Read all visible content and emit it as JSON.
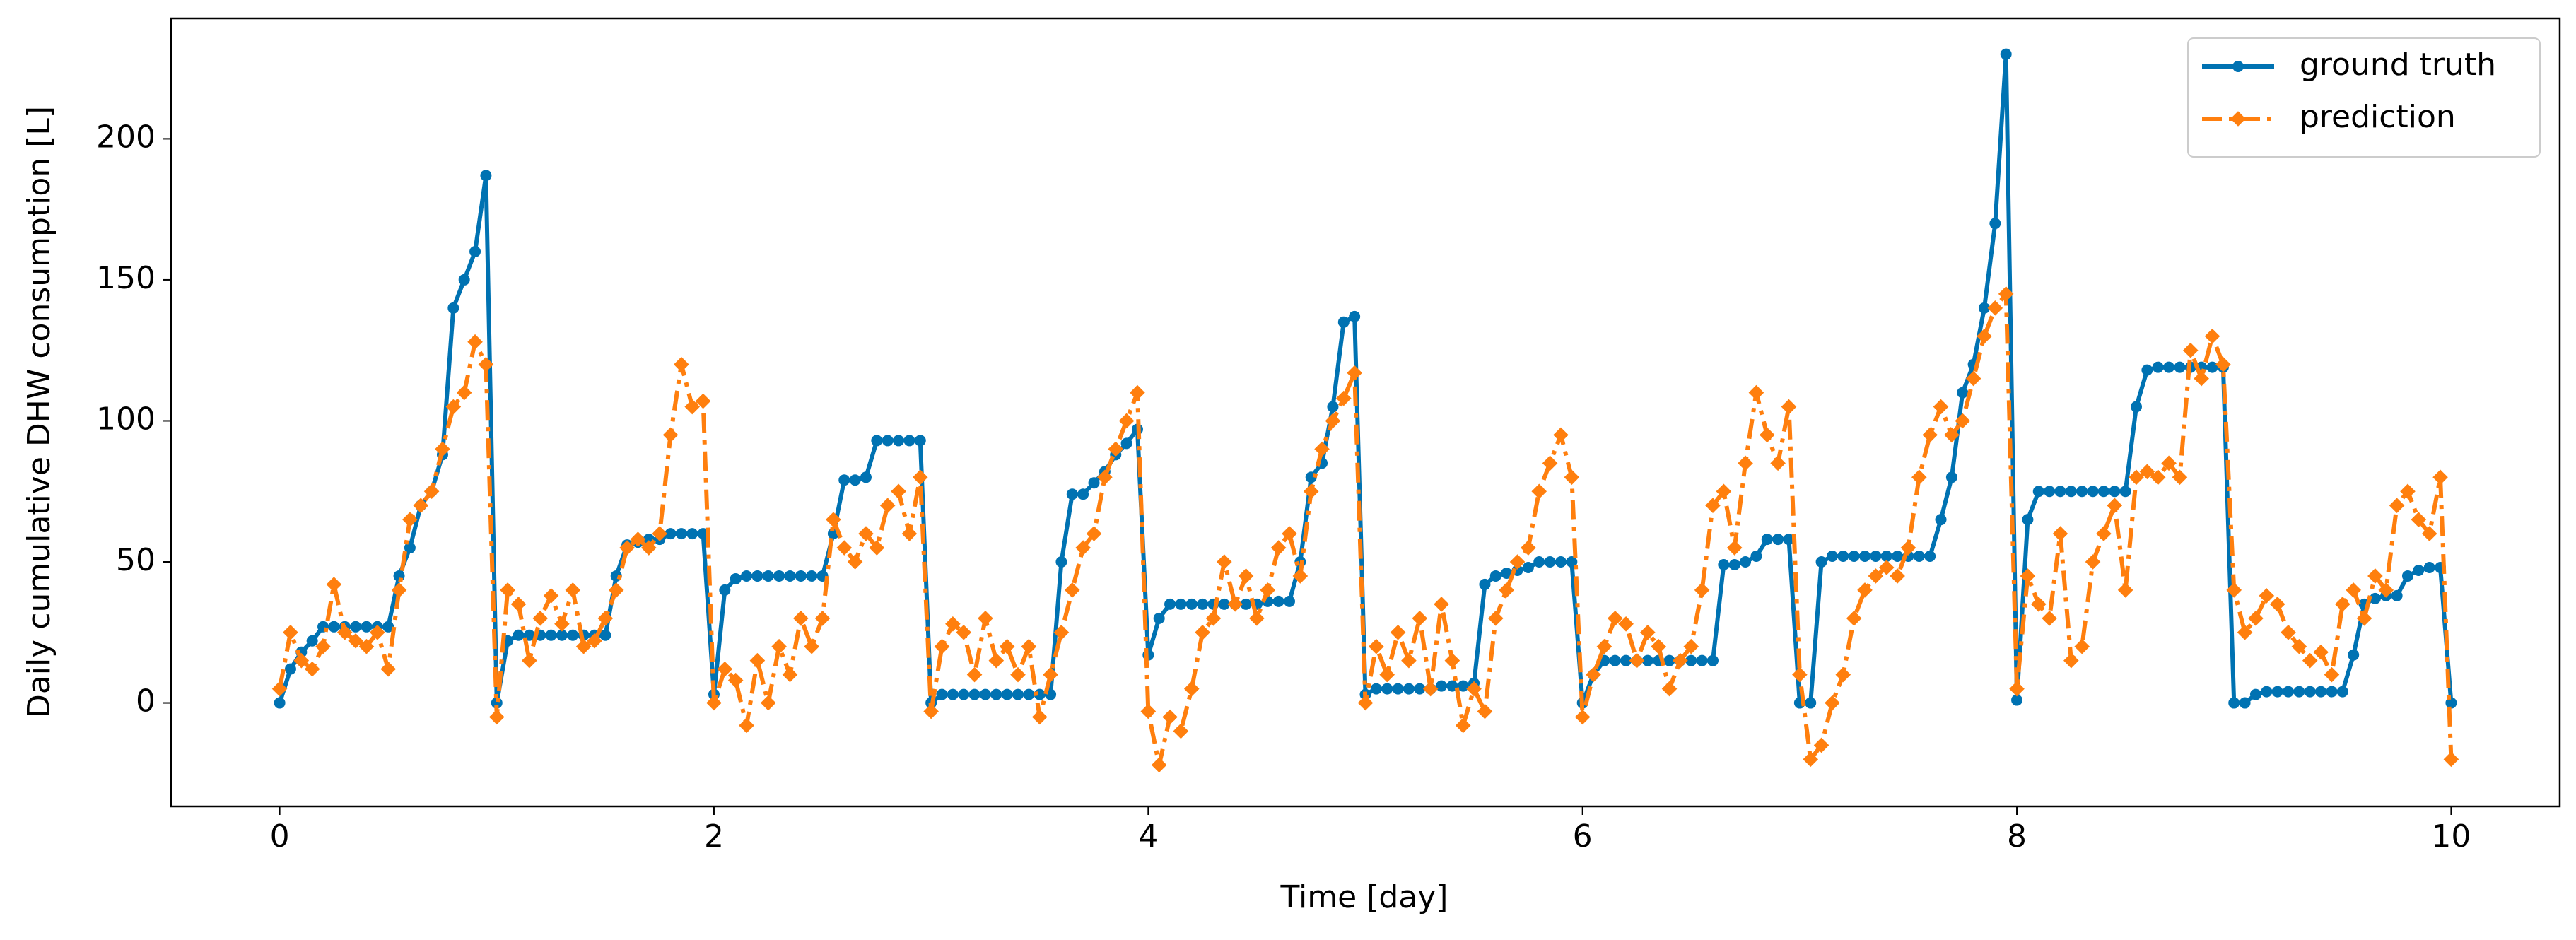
{
  "chart_data": {
    "type": "line",
    "xlabel": "Time [day]",
    "ylabel": "Daily cumulative DHW consumption [L]",
    "xlim": [
      -0.5,
      10.5
    ],
    "xticks": [
      0,
      2,
      4,
      6,
      8,
      10
    ],
    "ylim": [
      -36.7,
      242.7
    ],
    "yticks": [
      0,
      50,
      100,
      150,
      200
    ],
    "legend": "upper right",
    "x": [
      0,
      0.05,
      0.1,
      0.15,
      0.2,
      0.25,
      0.3,
      0.35,
      0.4,
      0.45,
      0.5,
      0.55,
      0.6,
      0.65,
      0.7,
      0.75,
      0.8,
      0.85,
      0.9,
      0.95,
      1,
      1.05,
      1.1,
      1.15,
      1.2,
      1.25,
      1.3,
      1.35,
      1.4,
      1.45,
      1.5,
      1.55,
      1.6,
      1.65,
      1.7,
      1.75,
      1.8,
      1.85,
      1.9,
      1.95,
      2,
      2.05,
      2.1,
      2.15,
      2.2,
      2.25,
      2.3,
      2.35,
      2.4,
      2.45,
      2.5,
      2.55,
      2.6,
      2.65,
      2.7,
      2.75,
      2.8,
      2.85,
      2.9,
      2.95,
      3,
      3.05,
      3.1,
      3.15,
      3.2,
      3.25,
      3.3,
      3.35,
      3.4,
      3.45,
      3.5,
      3.55,
      3.6,
      3.65,
      3.7,
      3.75,
      3.8,
      3.85,
      3.9,
      3.95,
      4,
      4.05,
      4.1,
      4.15,
      4.2,
      4.25,
      4.3,
      4.35,
      4.4,
      4.45,
      4.5,
      4.55,
      4.6,
      4.65,
      4.7,
      4.75,
      4.8,
      4.85,
      4.9,
      4.95,
      5,
      5.05,
      5.1,
      5.15,
      5.2,
      5.25,
      5.3,
      5.35,
      5.4,
      5.45,
      5.5,
      5.55,
      5.6,
      5.65,
      5.7,
      5.75,
      5.8,
      5.85,
      5.9,
      5.95,
      6,
      6.05,
      6.1,
      6.15,
      6.2,
      6.25,
      6.3,
      6.35,
      6.4,
      6.45,
      6.5,
      6.55,
      6.6,
      6.65,
      6.7,
      6.75,
      6.8,
      6.85,
      6.9,
      6.95,
      7,
      7.05,
      7.1,
      7.15,
      7.2,
      7.25,
      7.3,
      7.35,
      7.4,
      7.45,
      7.5,
      7.55,
      7.6,
      7.65,
      7.7,
      7.75,
      7.8,
      7.85,
      7.9,
      7.95,
      8,
      8.05,
      8.1,
      8.15,
      8.2,
      8.25,
      8.3,
      8.35,
      8.4,
      8.45,
      8.5,
      8.55,
      8.6,
      8.65,
      8.7,
      8.75,
      8.8,
      8.85,
      8.9,
      8.95,
      9,
      9.05,
      9.1,
      9.15,
      9.2,
      9.25,
      9.3,
      9.35,
      9.4,
      9.45,
      9.5,
      9.55,
      9.6,
      9.65,
      9.7,
      9.75,
      9.8,
      9.85,
      9.9,
      9.95,
      10
    ],
    "series": [
      {
        "name": "ground truth",
        "color": "#0072b2",
        "linestyle": "solid",
        "marker": "circle",
        "values": [
          0,
          12,
          18,
          22,
          27,
          27,
          27,
          27,
          27,
          27,
          27,
          45,
          55,
          70,
          75,
          88,
          140,
          150,
          160,
          187,
          0,
          22,
          24,
          24,
          24,
          24,
          24,
          24,
          24,
          24,
          24,
          45,
          56,
          57,
          58,
          58,
          60,
          60,
          60,
          60,
          3,
          40,
          44,
          45,
          45,
          45,
          45,
          45,
          45,
          45,
          45,
          60,
          79,
          79,
          80,
          93,
          93,
          93,
          93,
          93,
          0,
          3,
          3,
          3,
          3,
          3,
          3,
          3,
          3,
          3,
          3,
          3,
          50,
          74,
          74,
          78,
          82,
          88,
          92,
          97,
          17,
          30,
          35,
          35,
          35,
          35,
          35,
          35,
          35,
          35,
          35,
          36,
          36,
          36,
          50,
          80,
          85,
          105,
          135,
          137,
          3,
          5,
          5,
          5,
          5,
          5,
          5,
          6,
          6,
          6,
          7,
          42,
          45,
          46,
          47,
          48,
          50,
          50,
          50,
          50,
          0,
          10,
          15,
          15,
          15,
          15,
          15,
          15,
          15,
          15,
          15,
          15,
          15,
          49,
          49,
          50,
          52,
          58,
          58,
          58,
          0,
          0,
          50,
          52,
          52,
          52,
          52,
          52,
          52,
          52,
          52,
          52,
          52,
          65,
          80,
          110,
          120,
          140,
          170,
          230,
          1,
          65,
          75,
          75,
          75,
          75,
          75,
          75,
          75,
          75,
          75,
          105,
          118,
          119,
          119,
          119,
          119,
          119,
          119,
          119,
          0,
          0,
          3,
          4,
          4,
          4,
          4,
          4,
          4,
          4,
          4,
          17,
          35,
          37,
          38,
          38,
          45,
          47,
          48,
          48,
          0
        ]
      },
      {
        "name": "prediction",
        "color": "#ff7f0e",
        "linestyle": "dashdot",
        "marker": "diamond",
        "values": [
          5,
          25,
          15,
          12,
          20,
          42,
          25,
          22,
          20,
          25,
          12,
          40,
          65,
          70,
          75,
          90,
          105,
          110,
          128,
          120,
          -5,
          40,
          35,
          15,
          30,
          38,
          28,
          40,
          20,
          22,
          30,
          40,
          55,
          58,
          55,
          60,
          95,
          120,
          105,
          107,
          0,
          12,
          8,
          -8,
          15,
          0,
          20,
          10,
          30,
          20,
          30,
          65,
          55,
          50,
          60,
          55,
          70,
          75,
          60,
          80,
          -3,
          20,
          28,
          25,
          10,
          30,
          15,
          20,
          10,
          20,
          -5,
          10,
          25,
          40,
          55,
          60,
          80,
          90,
          100,
          110,
          -3,
          -22,
          -5,
          -10,
          5,
          25,
          30,
          50,
          35,
          45,
          30,
          40,
          55,
          60,
          45,
          75,
          90,
          100,
          108,
          117,
          0,
          20,
          10,
          25,
          15,
          30,
          5,
          35,
          15,
          -8,
          5,
          -3,
          30,
          40,
          50,
          55,
          75,
          85,
          95,
          80,
          -5,
          10,
          20,
          30,
          28,
          15,
          25,
          20,
          5,
          15,
          20,
          40,
          70,
          75,
          55,
          85,
          110,
          95,
          85,
          105,
          10,
          -20,
          -15,
          0,
          10,
          30,
          40,
          45,
          48,
          45,
          55,
          80,
          95,
          105,
          95,
          100,
          115,
          130,
          140,
          145,
          5,
          45,
          35,
          30,
          60,
          15,
          20,
          50,
          60,
          70,
          40,
          80,
          82,
          80,
          85,
          80,
          125,
          115,
          130,
          120,
          40,
          25,
          30,
          38,
          35,
          25,
          20,
          15,
          18,
          10,
          35,
          40,
          30,
          45,
          40,
          70,
          75,
          65,
          60,
          80,
          -20
        ]
      }
    ]
  }
}
